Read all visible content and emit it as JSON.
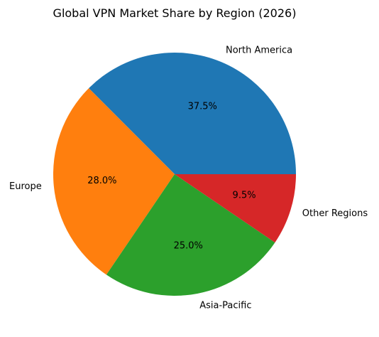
{
  "chart_data": {
    "type": "pie",
    "title": "Global VPN Market Share by Region (2026)",
    "categories": [
      "North America",
      "Europe",
      "Asia-Pacific",
      "Other Regions"
    ],
    "values": [
      37.5,
      28.0,
      25.0,
      9.5
    ],
    "value_labels": [
      "37.5%",
      "28.0%",
      "25.0%",
      "9.5%"
    ],
    "colors": [
      "#1f77b4",
      "#ff7f0e",
      "#2ca02c",
      "#d62728"
    ],
    "start_angle_deg": 0,
    "direction": "counterclockwise",
    "legend": "none"
  }
}
